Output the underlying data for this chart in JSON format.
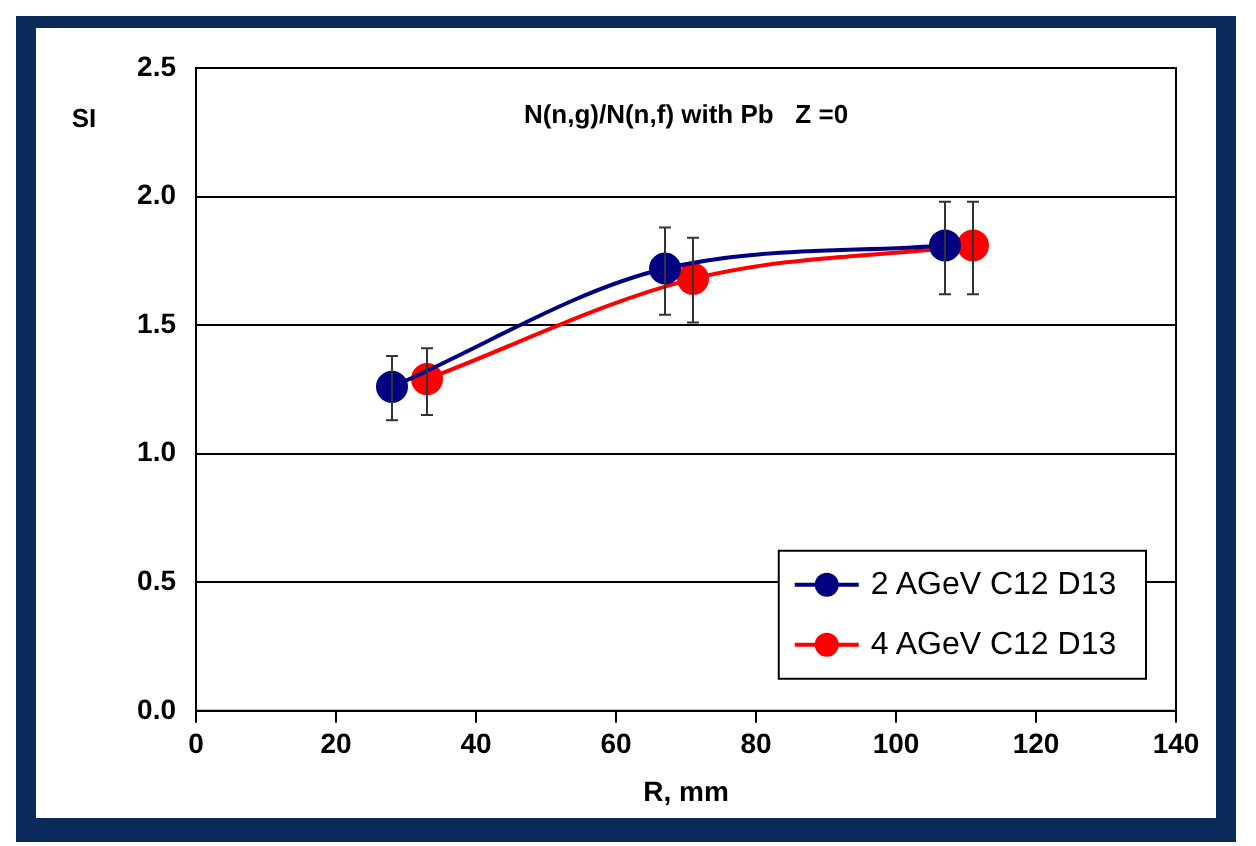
{
  "chart_data": {
    "type": "line",
    "title": "N(n,g)/N(n,f) with Pb   Z =0",
    "xlabel": "R, mm",
    "ylabel": "SI",
    "series": [
      {
        "name": "2 AGeV C12 D13",
        "color": "#000080",
        "x": [
          28,
          67,
          107
        ],
        "values": [
          1.26,
          1.72,
          1.81
        ],
        "errors": [
          [
            1.13,
            1.38
          ],
          [
            1.54,
            1.88
          ],
          [
            1.62,
            1.98
          ]
        ]
      },
      {
        "name": "4 AGeV C12 D13",
        "color": "#ff0000",
        "x": [
          33,
          71,
          111
        ],
        "values": [
          1.29,
          1.68,
          1.81
        ],
        "errors": [
          [
            1.15,
            1.41
          ],
          [
            1.51,
            1.84
          ],
          [
            1.62,
            1.98
          ]
        ]
      }
    ],
    "xlim": [
      0,
      140
    ],
    "xticks": [
      0,
      20,
      40,
      60,
      80,
      100,
      120,
      140
    ],
    "ylim": [
      0,
      2.5
    ],
    "yticks": [
      {
        "value": 0,
        "label": "0.0"
      },
      {
        "value": 0.5,
        "label": "0.5"
      },
      {
        "value": 1,
        "label": "1.0"
      },
      {
        "value": 1.5,
        "label": "1.5"
      },
      {
        "value": 2,
        "label": "2.0"
      },
      {
        "value": 2.5,
        "label": "2.5"
      }
    ],
    "grid": "y",
    "legend": "bottom right",
    "marker": "circle",
    "line_style": "solid"
  }
}
